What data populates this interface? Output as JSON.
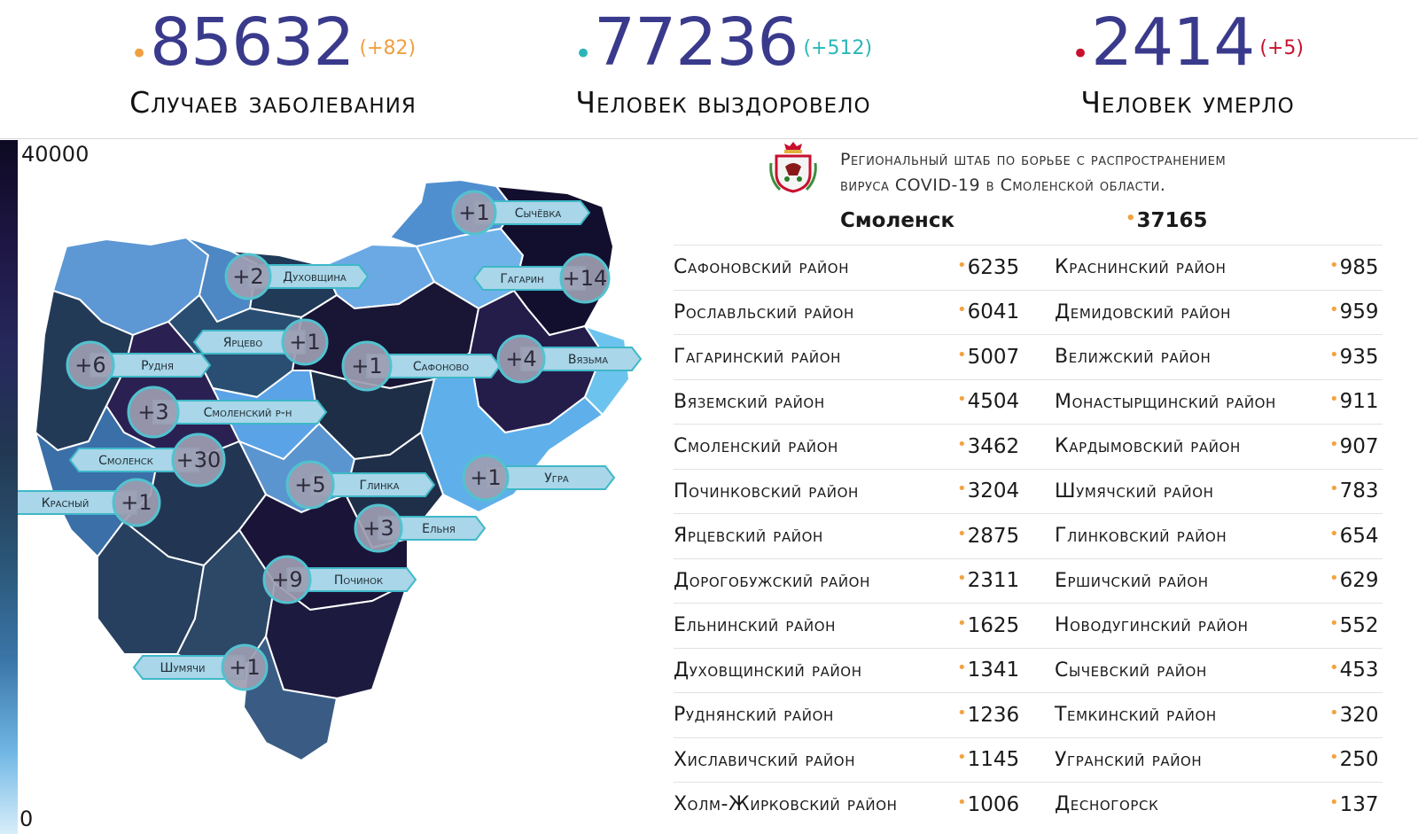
{
  "stats": [
    {
      "value": "85632",
      "delta": "(+82)",
      "label": "Случаев заболевания",
      "color": "#f0a040"
    },
    {
      "value": "77236",
      "delta": "(+512)",
      "label": "Человек выздоровело",
      "color": "#2ab7b7"
    },
    {
      "value": "2414",
      "delta": "(+5)",
      "label": "Человек умерло",
      "color": "#c8102e"
    }
  ],
  "scale": {
    "max": "40000",
    "min": "0"
  },
  "headquarters": {
    "line1": "Региональный штаб по борьбе с распространением",
    "line2": "вируса COVID-19 в Смоленской области."
  },
  "city": {
    "name": "Смоленск",
    "value": "37165"
  },
  "districts_left": [
    {
      "name": "Сафоновский район",
      "value": "6235"
    },
    {
      "name": "Рославльский район",
      "value": "6041"
    },
    {
      "name": "Гагаринский район",
      "value": "5007"
    },
    {
      "name": "Вяземский район",
      "value": "4504"
    },
    {
      "name": "Смоленский район",
      "value": "3462"
    },
    {
      "name": "Починковский район",
      "value": "3204"
    },
    {
      "name": "Ярцевский район",
      "value": "2875"
    },
    {
      "name": "Дорогобужский район",
      "value": "2311"
    },
    {
      "name": "Ельнинский район",
      "value": "1625"
    },
    {
      "name": "Духовщинский район",
      "value": "1341"
    },
    {
      "name": "Руднянский район",
      "value": "1236"
    },
    {
      "name": "Хиславичский район",
      "value": "1145"
    },
    {
      "name": "Холм-Жирковский район",
      "value": "1006"
    }
  ],
  "districts_right": [
    {
      "name": "Краснинский район",
      "value": "985"
    },
    {
      "name": "Демидовский район",
      "value": "959"
    },
    {
      "name": "Велижский район",
      "value": "935"
    },
    {
      "name": "Монастырщинский район",
      "value": "911"
    },
    {
      "name": "Кардымовский район",
      "value": "907"
    },
    {
      "name": "Шумячский район",
      "value": "783"
    },
    {
      "name": "Глинковский район",
      "value": "654"
    },
    {
      "name": "Ершичский район",
      "value": "629"
    },
    {
      "name": "Новодугинский район",
      "value": "552"
    },
    {
      "name": "Сычевский район",
      "value": "453"
    },
    {
      "name": "Темкинский район",
      "value": "320"
    },
    {
      "name": "Угранский район",
      "value": "250"
    },
    {
      "name": "Десногорск",
      "value": "137"
    }
  ],
  "map_badges": [
    {
      "value": "+1",
      "label": "Сычёвка"
    },
    {
      "value": "+2",
      "label": "Духовщина"
    },
    {
      "value": "+14",
      "label": "Гагарин"
    },
    {
      "value": "+1",
      "label": "Ярцево"
    },
    {
      "value": "+6",
      "label": "Рудня"
    },
    {
      "value": "+1",
      "label": "Сафоново"
    },
    {
      "value": "+4",
      "label": "Вязьма"
    },
    {
      "value": "+3",
      "label": "Смоленский р-н"
    },
    {
      "value": "+30",
      "label": "Смоленск"
    },
    {
      "value": "+5",
      "label": "Глинка"
    },
    {
      "value": "+1",
      "label": "Угра"
    },
    {
      "value": "+1",
      "label": "Красный"
    },
    {
      "value": "+3",
      "label": "Ельня"
    },
    {
      "value": "+9",
      "label": "Починок"
    },
    {
      "value": "+1",
      "label": "Шумячи"
    }
  ]
}
